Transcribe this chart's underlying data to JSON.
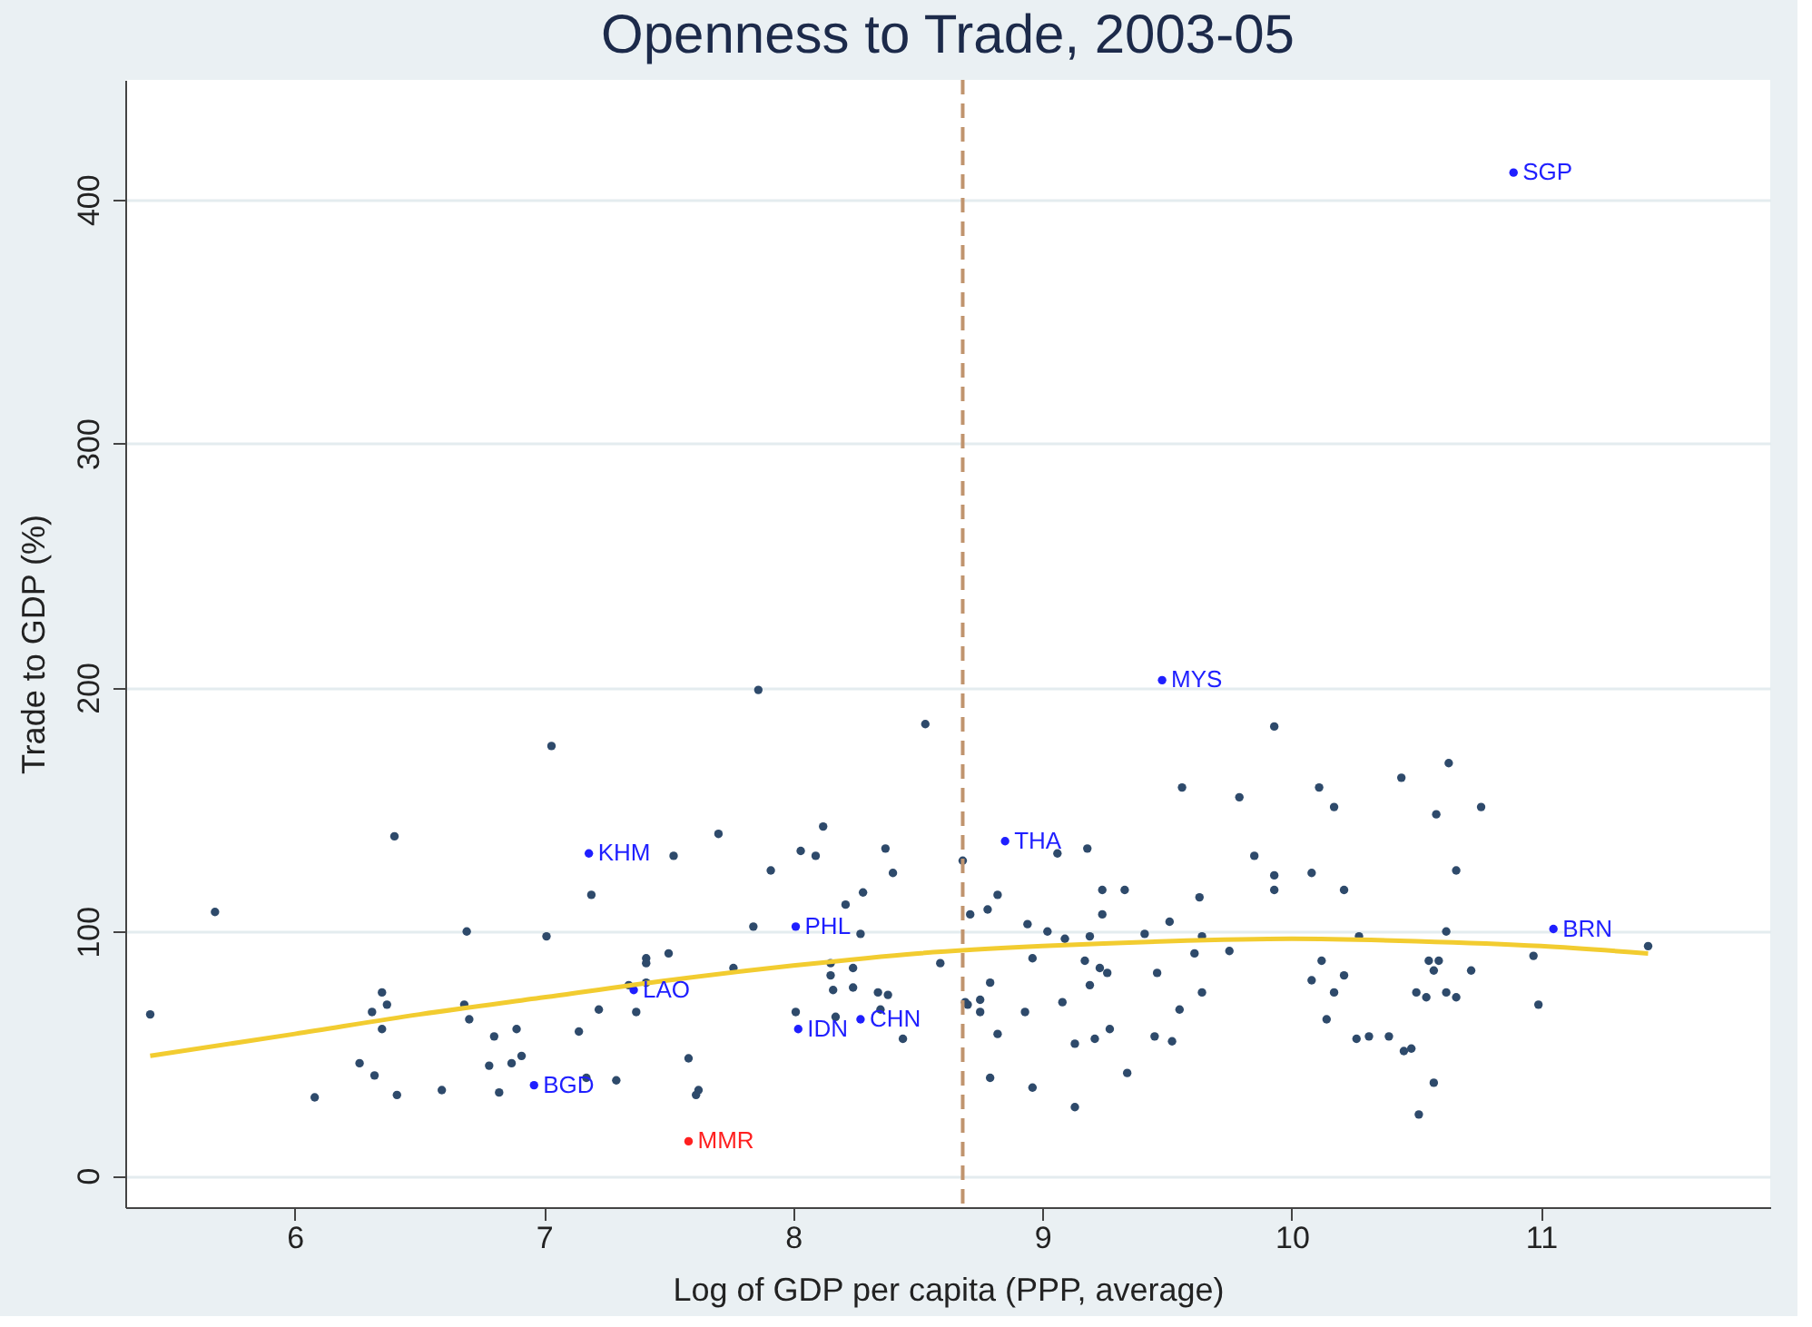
{
  "chart_data": {
    "type": "scatter",
    "title": "Openness to Trade, 2003-05",
    "xlabel": "Log of GDP per capita (PPP, average)",
    "ylabel": "Trade to GDP (%)",
    "xlim": [
      5.32,
      11.92
    ],
    "ylim": [
      -13,
      449
    ],
    "xticks": [
      6,
      7,
      8,
      9,
      10,
      11
    ],
    "yticks": [
      0,
      100,
      200,
      300,
      400
    ],
    "grid": "y",
    "series": [
      {
        "marker": "circle",
        "color": "#2e4a6b",
        "x": [
          5.42,
          5.68,
          6.4,
          6.08,
          6.26,
          6.32,
          6.31,
          6.35,
          6.37,
          6.35,
          6.41,
          6.59,
          6.69,
          6.68,
          6.7,
          6.8,
          6.78,
          6.82,
          6.87,
          6.91,
          6.89,
          7.03,
          7.01,
          7.14,
          7.19,
          7.52,
          7.22,
          7.17,
          7.29,
          7.34,
          7.41,
          7.37,
          7.41,
          7.41,
          7.5,
          7.58,
          7.62,
          7.61,
          7.7,
          7.76,
          7.84,
          7.91,
          8.03,
          8.09,
          8.12,
          8.27,
          8.01,
          8.15,
          8.15,
          8.16,
          8.24,
          8.24,
          8.21,
          8.28,
          8.37,
          8.4,
          8.17,
          8.34,
          8.38,
          8.35,
          8.44,
          8.53,
          8.59,
          8.68,
          8.71,
          8.7,
          7.86,
          9.93,
          9.56,
          9.79,
          10.11,
          10.17,
          10.44,
          10.63,
          10.58,
          10.76,
          10.66,
          9.06,
          9.18,
          9.85,
          9.93,
          9.93,
          10.08,
          10.21,
          9.24,
          9.33,
          8.82,
          8.78,
          9.24,
          9.63,
          9.51,
          8.94,
          9.02,
          9.09,
          9.19,
          9.41,
          9.64,
          10.27,
          10.62,
          11.43,
          8.96,
          9.61,
          9.75,
          9.17,
          9.23,
          9.26,
          9.46,
          10.12,
          10.21,
          10.08,
          10.55,
          10.59,
          10.57,
          10.72,
          10.97,
          8.79,
          9.19,
          8.69,
          8.75,
          8.75,
          8.93,
          9.08,
          9.64,
          9.55,
          10.17,
          10.5,
          10.54,
          10.62,
          10.66,
          10.99,
          8.82,
          9.13,
          9.21,
          9.27,
          9.45,
          9.52,
          10.14,
          10.26,
          10.31,
          10.39,
          10.45,
          10.48,
          8.79,
          8.96,
          9.34,
          9.13,
          10.57,
          10.51
        ],
        "values": [
          66,
          108,
          139,
          32,
          46,
          41,
          67,
          75,
          70,
          60,
          33,
          35,
          100,
          70,
          64,
          57,
          45,
          34,
          46,
          49,
          60,
          176,
          98,
          59,
          115,
          131,
          68,
          40,
          39,
          78,
          79,
          67,
          89,
          87,
          91,
          48,
          35,
          33,
          140,
          85,
          102,
          125,
          133,
          131,
          143,
          99,
          67,
          87,
          82,
          76,
          85,
          77,
          111,
          116,
          134,
          124,
          65,
          75,
          74,
          68,
          56,
          185,
          87,
          129,
          107,
          70,
          199,
          184,
          159,
          155,
          159,
          151,
          163,
          169,
          148,
          151,
          125,
          132,
          134,
          131,
          123,
          117,
          124,
          117,
          117,
          117,
          115,
          109,
          107,
          114,
          104,
          103,
          100,
          97,
          98,
          99,
          98,
          98,
          100,
          94,
          89,
          91,
          92,
          88,
          85,
          83,
          83,
          88,
          82,
          80,
          88,
          88,
          84,
          84,
          90,
          79,
          78,
          71,
          72,
          67,
          67,
          71,
          75,
          68,
          75,
          75,
          73,
          75,
          73,
          70,
          58,
          54,
          56,
          60,
          57,
          55,
          64,
          56,
          57,
          57,
          51,
          52,
          40,
          36,
          42,
          28,
          38,
          25
        ]
      },
      {
        "marker": "circle",
        "color": "#1f1fff",
        "x": [
          7.18,
          6.96,
          7.36,
          8.01,
          8.02,
          8.27,
          8.85,
          9.48,
          11.05,
          10.89
        ],
        "values": [
          132,
          37,
          76,
          102,
          60,
          64,
          137,
          203,
          101,
          411
        ]
      },
      {
        "marker": "circle",
        "color": "#ff2020",
        "x": [
          7.58
        ],
        "values": [
          14
        ]
      },
      {
        "type": "line",
        "color": "#f2cc30",
        "x": [
          5.42,
          6,
          6.5,
          7,
          7.5,
          8,
          8.5,
          9,
          9.5,
          10,
          10.5,
          11,
          11.43
        ],
        "values": [
          49,
          58,
          66,
          73,
          80,
          86,
          91,
          94,
          96,
          97,
          96,
          94,
          91
        ]
      }
    ],
    "ref_lines": [
      {
        "axis": "x",
        "value": 8.68,
        "color": "#c0946e",
        "line_style": "dashed"
      }
    ],
    "annotations": [
      {
        "text": "KHM",
        "x": 7.18,
        "y": 132
      },
      {
        "text": "BGD",
        "x": 6.96,
        "y": 37
      },
      {
        "text": "LAO",
        "x": 7.36,
        "y": 76
      },
      {
        "text": "PHL",
        "x": 8.01,
        "y": 102
      },
      {
        "text": "IDN",
        "x": 8.02,
        "y": 60
      },
      {
        "text": "CHN",
        "x": 8.27,
        "y": 64
      },
      {
        "text": "THA",
        "x": 8.85,
        "y": 137
      },
      {
        "text": "MYS",
        "x": 9.48,
        "y": 203
      },
      {
        "text": "BRN",
        "x": 11.05,
        "y": 101
      },
      {
        "text": "SGP",
        "x": 10.89,
        "y": 411
      },
      {
        "text": "MMR",
        "x": 7.58,
        "y": 14
      }
    ]
  }
}
